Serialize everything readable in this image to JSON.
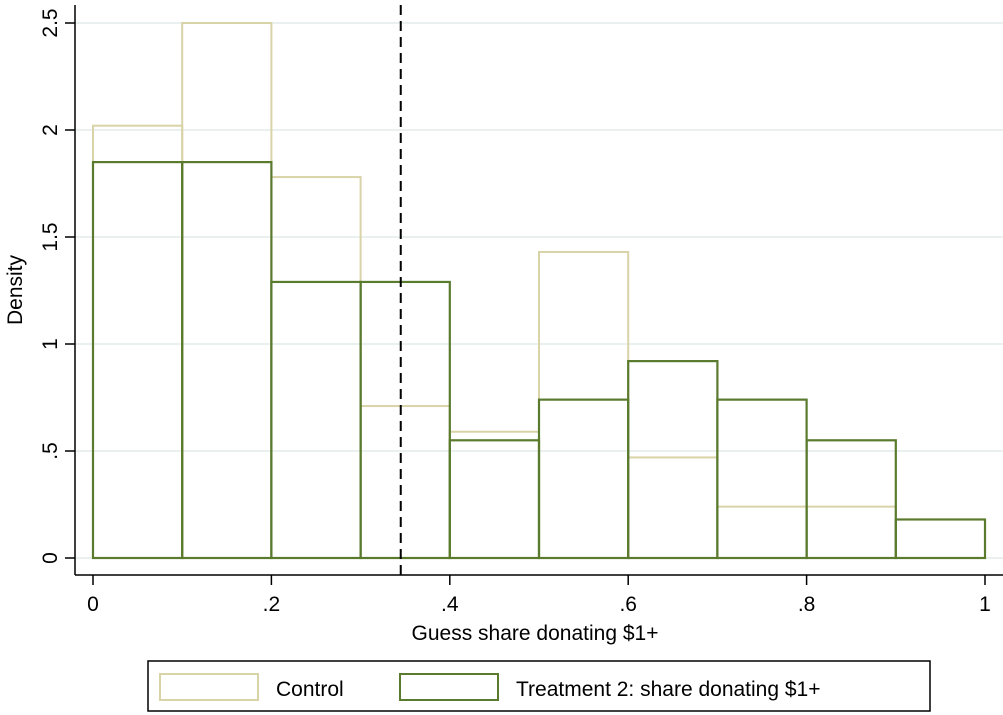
{
  "chart_data": {
    "type": "histogram",
    "xlabel": "Guess share donating $1+",
    "ylabel": "Density",
    "xlim": [
      0,
      1
    ],
    "ylim": [
      0,
      2.5
    ],
    "x_ticks": [
      {
        "value": 0,
        "label": "0"
      },
      {
        "value": 0.2,
        "label": ".2"
      },
      {
        "value": 0.4,
        "label": ".4"
      },
      {
        "value": 0.6,
        "label": ".6"
      },
      {
        "value": 0.8,
        "label": ".8"
      },
      {
        "value": 1,
        "label": "1"
      }
    ],
    "y_ticks": [
      {
        "value": 0,
        "label": "0"
      },
      {
        "value": 0.5,
        "label": ".5"
      },
      {
        "value": 1,
        "label": "1"
      },
      {
        "value": 1.5,
        "label": "1.5"
      },
      {
        "value": 2,
        "label": "2"
      },
      {
        "value": 2.5,
        "label": "2.5"
      }
    ],
    "bin_edges": [
      0,
      0.1,
      0.2,
      0.3,
      0.4,
      0.5,
      0.6,
      0.7,
      0.8,
      0.9,
      1.0
    ],
    "series": [
      {
        "name": "Control",
        "color": "#d9d3a8",
        "values": [
          2.02,
          2.5,
          1.78,
          0.71,
          0.59,
          1.43,
          0.47,
          0.24,
          0.24,
          0
        ]
      },
      {
        "name": "Treatment 2: share donating $1+",
        "color": "#5a7a2e",
        "values": [
          1.85,
          1.85,
          1.29,
          1.29,
          0.55,
          0.74,
          0.92,
          0.74,
          0.55,
          0.18
        ]
      }
    ],
    "reference_line": {
      "x": 0.345,
      "style": "dashed",
      "color": "#000000"
    },
    "grid": true,
    "grid_color": "#e4ecec",
    "legend_position": "bottom"
  }
}
